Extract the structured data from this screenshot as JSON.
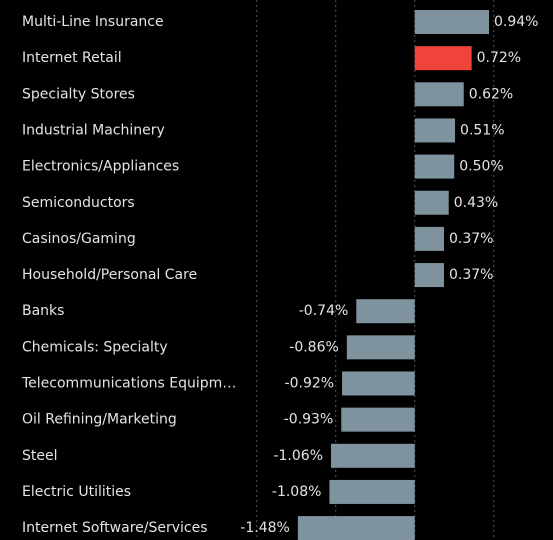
{
  "chart_data": {
    "type": "barh",
    "categories": [
      "Multi-Line Insurance",
      "Internet Retail",
      "Specialty Stores",
      "Industrial Machinery",
      "Electronics/Appliances",
      "Semiconductors",
      "Casinos/Gaming",
      "Household/Personal Care",
      "Banks",
      "Chemicals: Specialty",
      "Telecommunications Equipm…",
      "Oil Refining/Marketing",
      "Steel",
      "Electric Utilities",
      "Internet Software/Services"
    ],
    "values": [
      0.94,
      0.72,
      0.62,
      0.51,
      0.5,
      0.43,
      0.37,
      0.37,
      -0.74,
      -0.86,
      -0.92,
      -0.93,
      -1.06,
      -1.08,
      -1.48
    ],
    "value_labels": [
      "0.94%",
      "0.72%",
      "0.62%",
      "0.51%",
      "0.50%",
      "0.43%",
      "0.37%",
      "0.37%",
      "-0.74%",
      "-0.86%",
      "-0.92%",
      "-0.93%",
      "-1.06%",
      "-1.08%",
      "-1.48%"
    ],
    "colors": [
      "#7f939e",
      "#f0443a",
      "#7f939e",
      "#7f939e",
      "#7f939e",
      "#7f939e",
      "#7f939e",
      "#7f939e",
      "#7f939e",
      "#7f939e",
      "#7f939e",
      "#7f939e",
      "#7f939e",
      "#7f939e",
      "#7f939e"
    ],
    "xlim": [
      -5.25,
      1.75
    ],
    "xticks": [
      -2,
      -1,
      0,
      1
    ],
    "grid": true
  }
}
